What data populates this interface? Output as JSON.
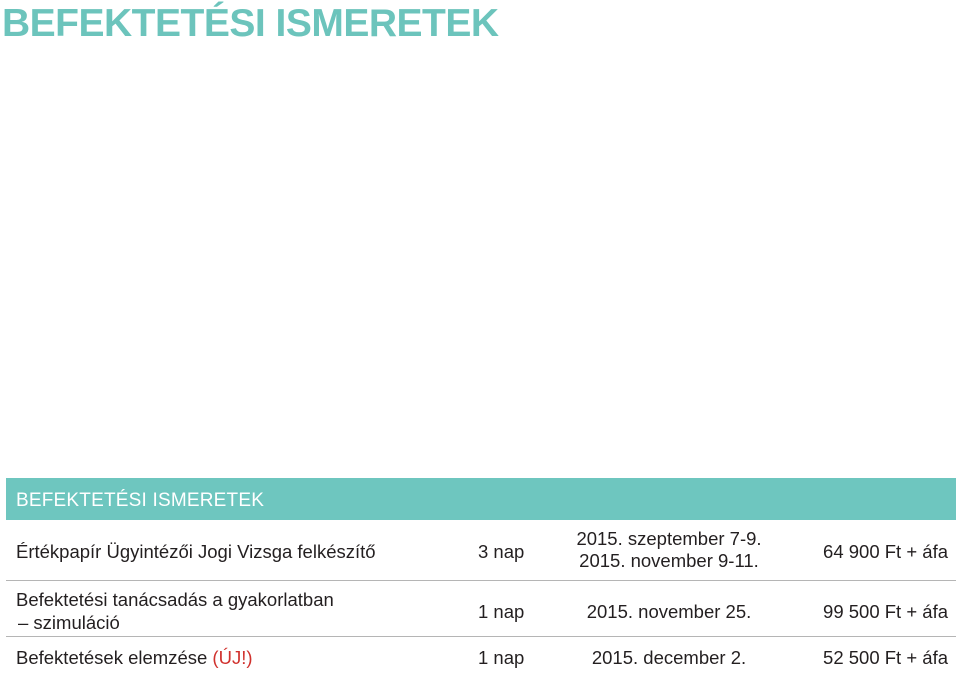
{
  "page_title": "BEFEKTETÉSI ISMERETEK",
  "table": {
    "header": "BEFEKTETÉSI ISMERETEK",
    "rows": [
      {
        "course": "Értékpapír Ügyintézői Jogi Vizsga felkészítő",
        "duration": "3 nap",
        "dates": [
          "2015. szeptember 7-9.",
          "2015. november 9-11."
        ],
        "price": "64 900 Ft + áfa"
      },
      {
        "course_lines": [
          "Befektetési tanácsadás a gyakorlatban",
          "– szimuláció"
        ],
        "duration": "1 nap",
        "dates": [
          "2015. november 25."
        ],
        "price": "99 500 Ft + áfa"
      },
      {
        "course": "Befektetések elemzése",
        "course_tag": "(ÚJ!)",
        "duration": "1 nap",
        "dates": [
          "2015. december 2."
        ],
        "price": "52 500 Ft + áfa"
      }
    ]
  },
  "colors": {
    "accent": "#6ec6bf",
    "title": "#6cc4bc",
    "new_tag": "#d0312d",
    "text": "#231f20"
  }
}
